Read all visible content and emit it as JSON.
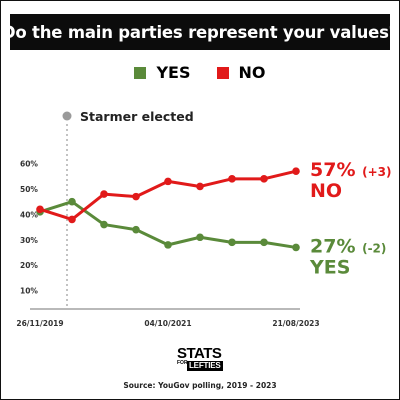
{
  "title": "Do the main parties represent your values?",
  "legend": [
    {
      "label": "YES",
      "color": "#5a8a3a"
    },
    {
      "label": "NO",
      "color": "#e11a1a"
    }
  ],
  "annotation": {
    "label": "Starmer elected",
    "after_point": 1
  },
  "chart_data": {
    "type": "line",
    "title": "Do the main parties represent your values?",
    "y_ticks": [
      "10%",
      "20%",
      "30%",
      "40%",
      "50%",
      "60%"
    ],
    "ylim": [
      0,
      60
    ],
    "x_tick_labels": [
      "26/11/2019",
      "04/10/2021",
      "21/08/2023"
    ],
    "x_tick_positions": [
      0,
      4,
      8
    ],
    "point_count": 9,
    "grid": false,
    "series": [
      {
        "name": "YES",
        "color": "#5a8a3a",
        "values": [
          41,
          45,
          36,
          34,
          28,
          31,
          29,
          29,
          27
        ]
      },
      {
        "name": "NO",
        "color": "#e11a1a",
        "values": [
          42,
          38,
          48,
          47,
          53,
          51,
          54,
          54,
          57
        ]
      }
    ],
    "end_labels": [
      {
        "series": "NO",
        "value": "57%",
        "change": "(+3)",
        "name": "NO",
        "color": "#e11a1a"
      },
      {
        "series": "YES",
        "value": "27%",
        "change": "(-2)",
        "name": "YES",
        "color": "#5a8a3a"
      }
    ]
  },
  "logo": {
    "top": "STATS",
    "small": "FOR",
    "bottom": "LEFTIES"
  },
  "source": "Source: YouGov polling, 2019 - 2023"
}
